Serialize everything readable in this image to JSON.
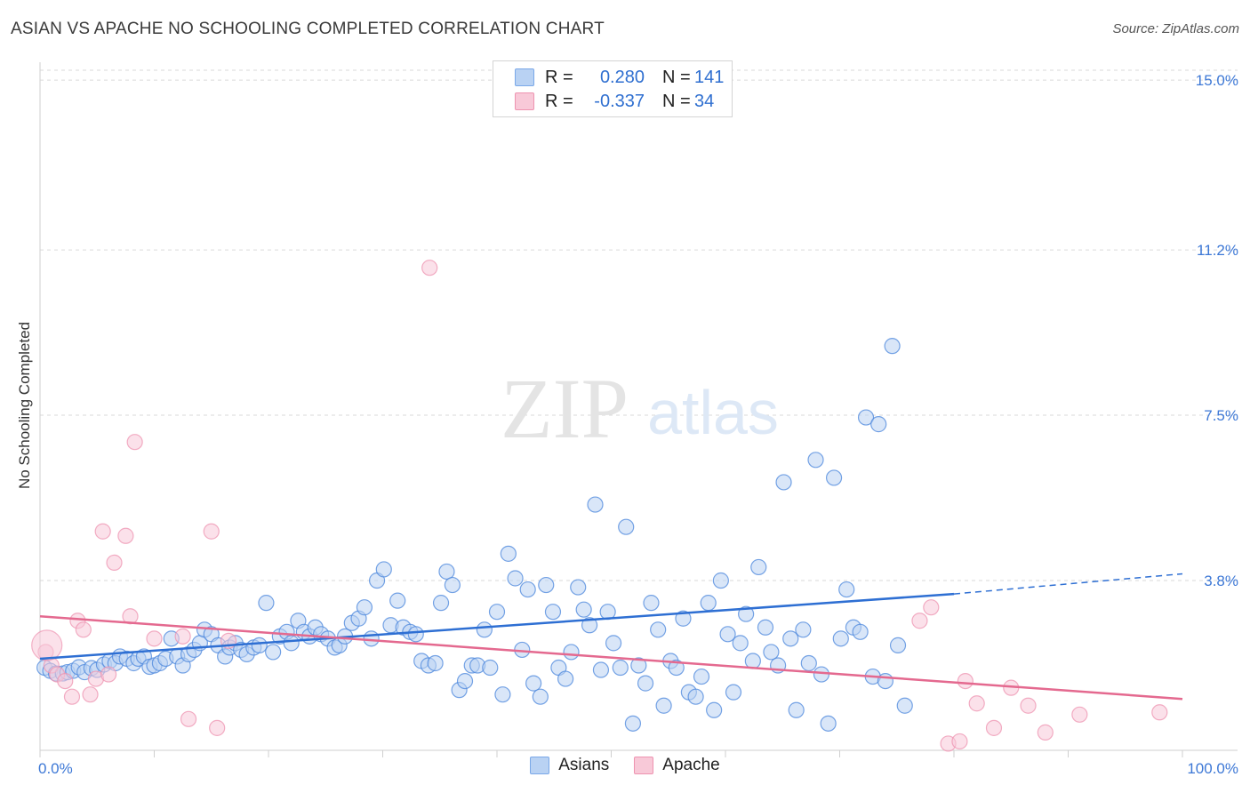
{
  "title": "ASIAN VS APACHE NO SCHOOLING COMPLETED CORRELATION CHART",
  "source": "Source: ZipAtlas.com",
  "watermark": {
    "zip": "ZIP",
    "atlas": "atlas"
  },
  "legend": {
    "rows": [
      {
        "r_label": "R =",
        "r_value": "0.280",
        "n_label": "N =",
        "n_value": "141",
        "color": "#7aa8e8",
        "fill": "#b9d2f3"
      },
      {
        "r_label": "R =",
        "r_value": "-0.337",
        "n_label": "N =",
        "n_value": "34",
        "color": "#ee93b0",
        "fill": "#f8c9d8"
      }
    ]
  },
  "bottom_legend": [
    {
      "label": "Asians",
      "color": "#7aa8e8",
      "fill": "#b9d2f3"
    },
    {
      "label": "Apache",
      "color": "#ee93b0",
      "fill": "#f8c9d8"
    }
  ],
  "chart_data": {
    "type": "scatter",
    "title": "ASIAN VS APACHE NO SCHOOLING COMPLETED CORRELATION CHART",
    "xlabel": "",
    "ylabel": "No Schooling Completed",
    "xlim": [
      0,
      100
    ],
    "ylim": [
      0,
      15.4
    ],
    "x_tick_labels": [
      {
        "value": 0,
        "label": "0.0%"
      },
      {
        "value": 100,
        "label": "100.0%"
      }
    ],
    "y_tick_labels": [
      {
        "value": 3.8,
        "label": "3.8%"
      },
      {
        "value": 7.5,
        "label": "7.5%"
      },
      {
        "value": 11.2,
        "label": "11.2%"
      },
      {
        "value": 15.0,
        "label": "15.0%"
      }
    ],
    "grid": "horizontal-dashed",
    "legend_position": "top-center",
    "series": [
      {
        "name": "Asians",
        "color": "#4a86dc",
        "fill": "#b9d2f3",
        "trend": {
          "x0": 0,
          "y0": 2.05,
          "x1": 80,
          "y1": 3.5,
          "dash_x1": 100,
          "dash_y1": 3.95
        },
        "points": [
          [
            0.4,
            1.85
          ],
          [
            0.9,
            1.78
          ],
          [
            1.4,
            1.72
          ],
          [
            2.0,
            1.72
          ],
          [
            2.4,
            1.75
          ],
          [
            2.9,
            1.78
          ],
          [
            3.4,
            1.86
          ],
          [
            3.9,
            1.75
          ],
          [
            4.5,
            1.84
          ],
          [
            5.0,
            1.8
          ],
          [
            5.6,
            1.92
          ],
          [
            6.1,
            2.0
          ],
          [
            6.6,
            1.95
          ],
          [
            7.0,
            2.1
          ],
          [
            7.6,
            2.05
          ],
          [
            8.2,
            1.95
          ],
          [
            8.6,
            2.05
          ],
          [
            9.1,
            2.1
          ],
          [
            9.6,
            1.87
          ],
          [
            10.0,
            1.9
          ],
          [
            10.5,
            1.95
          ],
          [
            11.0,
            2.05
          ],
          [
            11.5,
            2.5
          ],
          [
            12.0,
            2.1
          ],
          [
            12.5,
            1.9
          ],
          [
            13.0,
            2.15
          ],
          [
            13.5,
            2.25
          ],
          [
            14.0,
            2.4
          ],
          [
            14.4,
            2.7
          ],
          [
            15.0,
            2.6
          ],
          [
            15.6,
            2.35
          ],
          [
            16.2,
            2.1
          ],
          [
            16.6,
            2.3
          ],
          [
            17.1,
            2.4
          ],
          [
            17.6,
            2.25
          ],
          [
            18.1,
            2.15
          ],
          [
            18.7,
            2.3
          ],
          [
            19.2,
            2.35
          ],
          [
            19.8,
            3.3
          ],
          [
            20.4,
            2.2
          ],
          [
            21.0,
            2.55
          ],
          [
            21.6,
            2.65
          ],
          [
            22.0,
            2.4
          ],
          [
            22.6,
            2.9
          ],
          [
            23.1,
            2.65
          ],
          [
            23.6,
            2.55
          ],
          [
            24.1,
            2.75
          ],
          [
            24.6,
            2.6
          ],
          [
            25.2,
            2.5
          ],
          [
            25.8,
            2.3
          ],
          [
            26.2,
            2.35
          ],
          [
            26.7,
            2.55
          ],
          [
            27.3,
            2.85
          ],
          [
            27.9,
            2.95
          ],
          [
            28.4,
            3.2
          ],
          [
            29.0,
            2.5
          ],
          [
            29.5,
            3.8
          ],
          [
            30.1,
            4.05
          ],
          [
            30.7,
            2.8
          ],
          [
            31.3,
            3.35
          ],
          [
            31.8,
            2.75
          ],
          [
            32.4,
            2.65
          ],
          [
            32.9,
            2.6
          ],
          [
            33.4,
            2.0
          ],
          [
            34.0,
            1.9
          ],
          [
            34.6,
            1.95
          ],
          [
            35.1,
            3.3
          ],
          [
            35.6,
            4.0
          ],
          [
            36.1,
            3.7
          ],
          [
            36.7,
            1.35
          ],
          [
            37.2,
            1.55
          ],
          [
            37.8,
            1.9
          ],
          [
            38.3,
            1.9
          ],
          [
            38.9,
            2.7
          ],
          [
            39.4,
            1.85
          ],
          [
            40.0,
            3.1
          ],
          [
            40.5,
            1.25
          ],
          [
            41.0,
            4.4
          ],
          [
            41.6,
            3.85
          ],
          [
            42.2,
            2.25
          ],
          [
            42.7,
            3.6
          ],
          [
            43.2,
            1.5
          ],
          [
            43.8,
            1.2
          ],
          [
            44.3,
            3.7
          ],
          [
            44.9,
            3.1
          ],
          [
            45.4,
            1.85
          ],
          [
            46.0,
            1.6
          ],
          [
            46.5,
            2.2
          ],
          [
            47.1,
            3.65
          ],
          [
            47.6,
            3.15
          ],
          [
            48.1,
            2.8
          ],
          [
            48.6,
            5.5
          ],
          [
            49.1,
            1.8
          ],
          [
            49.7,
            3.1
          ],
          [
            50.2,
            2.4
          ],
          [
            50.8,
            1.85
          ],
          [
            51.3,
            5.0
          ],
          [
            51.9,
            0.6
          ],
          [
            52.4,
            1.9
          ],
          [
            53.0,
            1.5
          ],
          [
            53.5,
            3.3
          ],
          [
            54.1,
            2.7
          ],
          [
            54.6,
            1.0
          ],
          [
            55.2,
            2.0
          ],
          [
            55.7,
            1.85
          ],
          [
            56.3,
            2.95
          ],
          [
            56.8,
            1.3
          ],
          [
            57.4,
            1.2
          ],
          [
            57.9,
            1.65
          ],
          [
            58.5,
            3.3
          ],
          [
            59.0,
            0.9
          ],
          [
            59.6,
            3.8
          ],
          [
            60.2,
            2.6
          ],
          [
            60.7,
            1.3
          ],
          [
            61.3,
            2.4
          ],
          [
            61.8,
            3.05
          ],
          [
            62.4,
            2.0
          ],
          [
            62.9,
            4.1
          ],
          [
            63.5,
            2.75
          ],
          [
            64.0,
            2.2
          ],
          [
            64.6,
            1.9
          ],
          [
            65.1,
            6.0
          ],
          [
            65.7,
            2.5
          ],
          [
            66.2,
            0.9
          ],
          [
            66.8,
            2.7
          ],
          [
            67.3,
            1.95
          ],
          [
            67.9,
            6.5
          ],
          [
            68.4,
            1.7
          ],
          [
            69.0,
            0.6
          ],
          [
            69.5,
            6.1
          ],
          [
            70.1,
            2.5
          ],
          [
            70.6,
            3.6
          ],
          [
            71.2,
            2.75
          ],
          [
            71.8,
            2.65
          ],
          [
            72.3,
            7.45
          ],
          [
            72.9,
            1.65
          ],
          [
            73.4,
            7.3
          ],
          [
            74.0,
            1.55
          ],
          [
            74.6,
            9.05
          ],
          [
            75.1,
            2.35
          ],
          [
            75.7,
            1.0
          ]
        ]
      },
      {
        "name": "Apache",
        "color": "#ee93b0",
        "fill": "#f8c9d8",
        "trend": {
          "x0": 0,
          "y0": 3.0,
          "x1": 100,
          "y1": 1.15
        },
        "points": [
          [
            0.5,
            2.2
          ],
          [
            1.0,
            1.9
          ],
          [
            1.5,
            1.7
          ],
          [
            2.2,
            1.55
          ],
          [
            2.8,
            1.2
          ],
          [
            3.3,
            2.9
          ],
          [
            3.8,
            2.7
          ],
          [
            4.4,
            1.25
          ],
          [
            4.9,
            1.6
          ],
          [
            5.5,
            4.9
          ],
          [
            6.0,
            1.7
          ],
          [
            6.5,
            4.2
          ],
          [
            7.5,
            4.8
          ],
          [
            7.9,
            3.0
          ],
          [
            8.3,
            6.9
          ],
          [
            10.0,
            2.5
          ],
          [
            12.5,
            2.55
          ],
          [
            13.0,
            0.7
          ],
          [
            15.0,
            4.9
          ],
          [
            15.5,
            0.5
          ],
          [
            16.5,
            2.45
          ],
          [
            34.1,
            10.8
          ],
          [
            77.0,
            2.9
          ],
          [
            78.0,
            3.2
          ],
          [
            79.5,
            0.15
          ],
          [
            80.5,
            0.2
          ],
          [
            81.0,
            1.55
          ],
          [
            82.0,
            1.05
          ],
          [
            83.5,
            0.5
          ],
          [
            85.0,
            1.4
          ],
          [
            86.5,
            1.0
          ],
          [
            88.0,
            0.4
          ],
          [
            91.0,
            0.8
          ],
          [
            98.0,
            0.85
          ]
        ]
      }
    ]
  }
}
